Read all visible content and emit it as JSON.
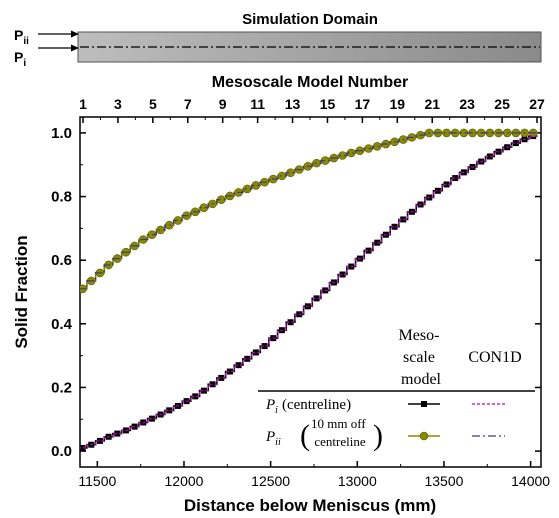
{
  "chart_data": {
    "type": "line",
    "domain_panel": {
      "title": "Simulation Domain",
      "arrow_labels": [
        {
          "main": "P",
          "sub": "ii"
        },
        {
          "main": "P",
          "sub": "i"
        }
      ]
    },
    "top_axis": {
      "label": "Mesoscale Model Number",
      "ticks": [
        1,
        3,
        5,
        7,
        9,
        11,
        13,
        15,
        17,
        19,
        21,
        23,
        25,
        27
      ]
    },
    "xlabel": "Distance below Meniscus (mm)",
    "ylabel": "Solid Fraction",
    "xlim": [
      11400,
      14060
    ],
    "ylim": [
      -0.05,
      1.05
    ],
    "xticks": [
      11500,
      12000,
      12500,
      13000,
      13500,
      14000
    ],
    "yticks": [
      0.0,
      0.2,
      0.4,
      0.6,
      0.8,
      1.0
    ],
    "x_step": 50.2,
    "legend": {
      "position": "bottom-right",
      "col1_header": [
        "Meso-",
        "scale",
        "model"
      ],
      "col2_header": "CON1D",
      "entries": [
        {
          "symbol": "P",
          "sub": "i",
          "text": "(centreline)"
        },
        {
          "symbol": "P",
          "sub": "ii",
          "text_lines": [
            "10 mm off",
            "centreline"
          ]
        }
      ]
    },
    "series": [
      {
        "name": "P_i (centreline)",
        "color": "#000000",
        "marker": "square",
        "x": [
          11415,
          11465,
          11515,
          11565,
          11615,
          11665,
          11715,
          11765,
          11815,
          11865,
          11915,
          11965,
          12015,
          12065,
          12115,
          12165,
          12215,
          12265,
          12315,
          12365,
          12415,
          12465,
          12515,
          12565,
          12615,
          12665,
          12715,
          12765,
          12815,
          12865,
          12915,
          12965,
          13015,
          13065,
          13115,
          13165,
          13215,
          13265,
          13315,
          13365,
          13415,
          13465,
          13515,
          13565,
          13615,
          13665,
          13715,
          13765,
          13815,
          13865,
          13915,
          13965,
          14015
        ],
        "y": [
          0.01,
          0.02,
          0.032,
          0.045,
          0.055,
          0.065,
          0.077,
          0.09,
          0.102,
          0.115,
          0.128,
          0.142,
          0.157,
          0.172,
          0.19,
          0.21,
          0.23,
          0.25,
          0.27,
          0.29,
          0.31,
          0.33,
          0.355,
          0.38,
          0.405,
          0.43,
          0.455,
          0.48,
          0.505,
          0.53,
          0.555,
          0.58,
          0.605,
          0.63,
          0.655,
          0.68,
          0.705,
          0.728,
          0.752,
          0.775,
          0.797,
          0.818,
          0.838,
          0.858,
          0.876,
          0.893,
          0.91,
          0.926,
          0.941,
          0.955,
          0.968,
          0.98,
          0.99
        ]
      },
      {
        "name": "P_ii (10 mm off centreline)",
        "color": "#8a8a00",
        "marker": "circle",
        "x": [
          11415,
          11465,
          11515,
          11565,
          11615,
          11665,
          11715,
          11765,
          11815,
          11865,
          11915,
          11965,
          12015,
          12065,
          12115,
          12165,
          12215,
          12265,
          12315,
          12365,
          12415,
          12465,
          12515,
          12565,
          12615,
          12665,
          12715,
          12765,
          12815,
          12865,
          12915,
          12965,
          13015,
          13065,
          13115,
          13165,
          13215,
          13265,
          13315,
          13365,
          13415,
          13465,
          13515,
          13565,
          13615,
          13665,
          13715,
          13765,
          13815,
          13865,
          13915,
          13965,
          14015
        ],
        "y": [
          0.51,
          0.535,
          0.56,
          0.585,
          0.605,
          0.625,
          0.645,
          0.665,
          0.68,
          0.695,
          0.71,
          0.725,
          0.74,
          0.752,
          0.765,
          0.777,
          0.79,
          0.802,
          0.813,
          0.824,
          0.835,
          0.845,
          0.855,
          0.865,
          0.875,
          0.885,
          0.895,
          0.905,
          0.913,
          0.921,
          0.929,
          0.937,
          0.944,
          0.951,
          0.958,
          0.965,
          0.972,
          0.979,
          0.986,
          0.993,
          1.0,
          1.0,
          1.0,
          1.0,
          1.0,
          1.0,
          1.0,
          1.0,
          1.0,
          1.0,
          1.0,
          1.0,
          1.0
        ]
      },
      {
        "name": "CON1D P_i",
        "color": "#c000c0",
        "line": "dashed",
        "x": [
          11415,
          11465,
          11515,
          11565,
          11615,
          11665,
          11715,
          11765,
          11815,
          11865,
          11915,
          11965,
          12015,
          12065,
          12115,
          12165,
          12215,
          12265,
          12315,
          12365,
          12415,
          12465,
          12515,
          12565,
          12615,
          12665,
          12715,
          12765,
          12815,
          12865,
          12915,
          12965,
          13015,
          13065,
          13115,
          13165,
          13215,
          13265,
          13315,
          13365,
          13415,
          13465,
          13515,
          13565,
          13615,
          13665,
          13715,
          13765,
          13815,
          13865,
          13915,
          13965,
          14015
        ],
        "y": [
          0.01,
          0.02,
          0.032,
          0.045,
          0.055,
          0.065,
          0.077,
          0.09,
          0.102,
          0.115,
          0.128,
          0.142,
          0.157,
          0.172,
          0.19,
          0.21,
          0.23,
          0.25,
          0.27,
          0.29,
          0.31,
          0.33,
          0.355,
          0.38,
          0.405,
          0.43,
          0.455,
          0.48,
          0.505,
          0.53,
          0.555,
          0.58,
          0.605,
          0.63,
          0.655,
          0.68,
          0.705,
          0.728,
          0.752,
          0.775,
          0.797,
          0.818,
          0.838,
          0.858,
          0.876,
          0.893,
          0.91,
          0.926,
          0.941,
          0.955,
          0.968,
          0.98,
          0.99
        ]
      },
      {
        "name": "CON1D P_ii",
        "color": "#3a3a8a",
        "line": "dashdot",
        "x": [
          11415,
          11465,
          11515,
          11565,
          11615,
          11665,
          11715,
          11765,
          11815,
          11865,
          11915,
          11965,
          12015,
          12065,
          12115,
          12165,
          12215,
          12265,
          12315,
          12365,
          12415,
          12465,
          12515,
          12565,
          12615,
          12665,
          12715,
          12765,
          12815,
          12865,
          12915,
          12965,
          13015,
          13065,
          13115,
          13165,
          13215,
          13265,
          13315,
          13365,
          13415,
          13465,
          13515,
          13565,
          13615,
          13665,
          13715,
          13765,
          13815,
          13865,
          13915,
          13965,
          14015
        ],
        "y": [
          0.51,
          0.535,
          0.56,
          0.585,
          0.605,
          0.625,
          0.645,
          0.665,
          0.68,
          0.695,
          0.71,
          0.725,
          0.74,
          0.752,
          0.765,
          0.777,
          0.79,
          0.802,
          0.813,
          0.824,
          0.835,
          0.845,
          0.855,
          0.865,
          0.875,
          0.885,
          0.895,
          0.905,
          0.913,
          0.921,
          0.929,
          0.937,
          0.944,
          0.951,
          0.958,
          0.965,
          0.972,
          0.979,
          0.986,
          0.993,
          1.0,
          1.0,
          1.0,
          1.0,
          1.0,
          1.0,
          1.0,
          1.0,
          1.0,
          1.0,
          1.0,
          1.0,
          1.0
        ]
      }
    ]
  }
}
